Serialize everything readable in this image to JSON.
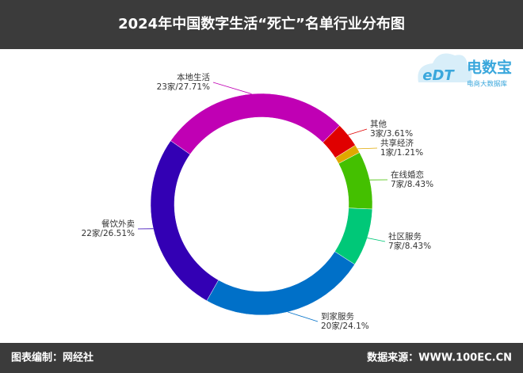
{
  "chart_data": {
    "type": "donut",
    "title": "2024年中国数字生活“死亡”名单行业分布图",
    "categories": [
      "本地生活",
      "其他",
      "共享经济",
      "在线婚恋",
      "社区服务",
      "到家服务",
      "餐饮外卖"
    ],
    "values": [
      23,
      3,
      1,
      7,
      7,
      20,
      22
    ],
    "value_labels": [
      "23家/27.71%",
      "3家/3.61%",
      "1家/1.21%",
      "7家/8.43%",
      "7家/8.43%",
      "20家/24.1%",
      "22家/26.51%"
    ],
    "colors": [
      "#c000b4",
      "#e00000",
      "#e0a800",
      "#44c000",
      "#00c878",
      "#0070c8",
      "#3300b4"
    ]
  },
  "logo": {
    "mark": "eDT",
    "name": "电数宝",
    "tagline": "电商大数据库"
  },
  "footer": {
    "left": "图表编制：网经社",
    "right": "数据来源：WWW.100EC.CN"
  }
}
